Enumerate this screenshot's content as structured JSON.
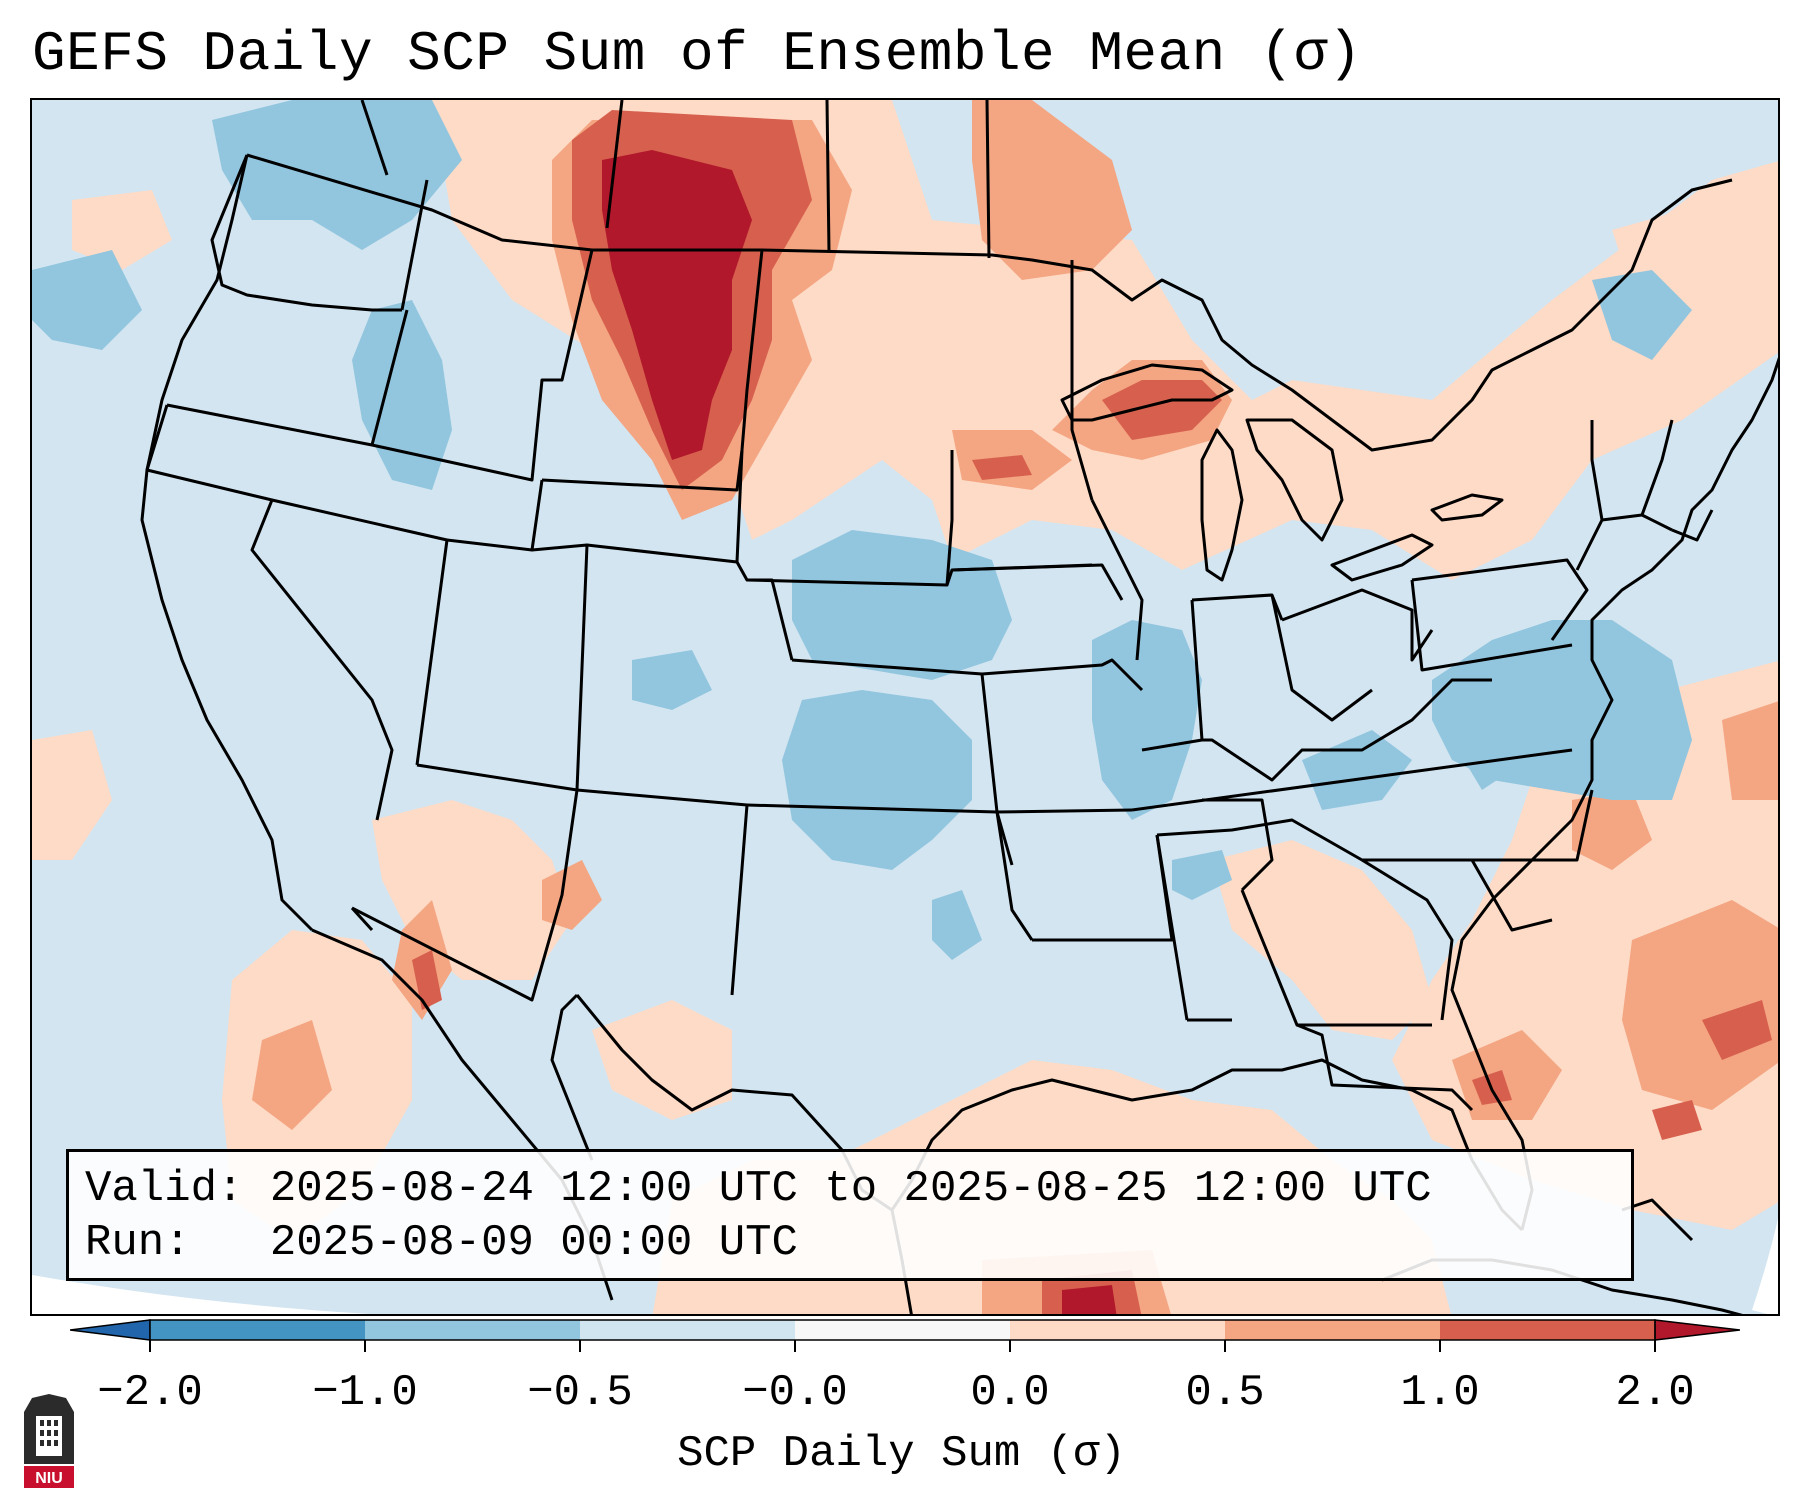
{
  "title": "GEFS Daily SCP Sum of Ensemble Mean (σ)",
  "info": {
    "valid_label": "Valid:",
    "valid_value": "2025-08-24 12:00 UTC to 2025-08-25 12:00 UTC",
    "run_label": "Run:",
    "run_value": "2025-08-09 00:00 UTC"
  },
  "colorbar": {
    "label": "SCP Daily Sum (σ)",
    "ticks": [
      "−2.0",
      "−1.0",
      "−0.5",
      "−0.0",
      "0.0",
      "0.5",
      "1.0",
      "2.0"
    ],
    "bins": [
      {
        "range": "< -2.0",
        "color": "#2166ac"
      },
      {
        "range": "-2.0 to -1.0",
        "color": "#4393c3"
      },
      {
        "range": "-1.0 to -0.5",
        "color": "#92c5de"
      },
      {
        "range": "-0.5 to -0.0",
        "color": "#d1e5f0"
      },
      {
        "range": "-0.0 to 0.0",
        "color": "#f7f7f7"
      },
      {
        "range": "0.0 to 0.5",
        "color": "#fddbc7"
      },
      {
        "range": "0.5 to 1.0",
        "color": "#f4a582"
      },
      {
        "range": "1.0 to 2.0",
        "color": "#d6604d"
      },
      {
        "range": "> 2.0",
        "color": "#b2182b"
      }
    ]
  },
  "regions": [
    {
      "name": "northern plains / montana",
      "level": 2.0
    },
    {
      "name": "upper great lakes",
      "level": 1.0
    },
    {
      "name": "southeast atlantic",
      "level": 1.0
    },
    {
      "name": "central plains",
      "level": -1.0
    },
    {
      "name": "mid-atlantic offshore",
      "level": -1.0
    }
  ],
  "logo_text": "NIU"
}
